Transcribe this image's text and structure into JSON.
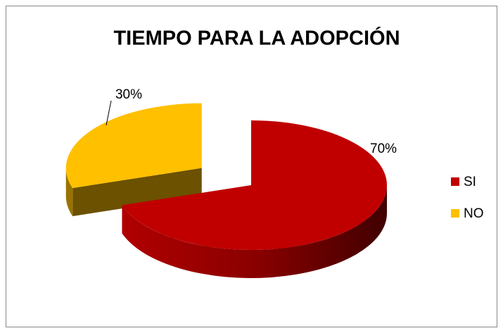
{
  "chart_data": {
    "type": "pie",
    "title": "TIEMPO PARA LA ADOPCIÓN",
    "categories": [
      "SI",
      "NO"
    ],
    "values": [
      70,
      30
    ],
    "value_labels": [
      "70%",
      "30%"
    ],
    "colors": [
      "#c00000",
      "#ffc000"
    ],
    "exploded": [
      false,
      true
    ],
    "legend": "right"
  }
}
